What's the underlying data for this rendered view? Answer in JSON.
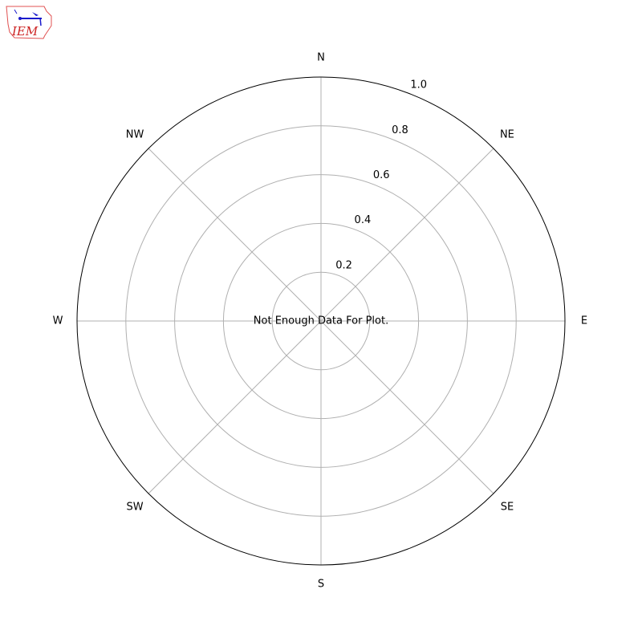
{
  "logo": {
    "text": "IEM",
    "colors": {
      "outline": "#e05050",
      "symbol": "#1a1acc",
      "text": "#cc2222"
    }
  },
  "chart_data": {
    "type": "polar",
    "title": "",
    "direction_labels": [
      "N",
      "NE",
      "E",
      "SE",
      "S",
      "SW",
      "W",
      "NW"
    ],
    "radial_ticks": [
      0.2,
      0.4,
      0.6,
      0.8,
      1.0
    ],
    "radial_tick_labels": [
      "0.2",
      "0.4",
      "0.6",
      "0.8",
      "1.0"
    ],
    "rlim": [
      0,
      1.0
    ],
    "grid": true,
    "series": [],
    "annotation": "Not Enough Data For Plot.",
    "colors": {
      "grid": "#b0b0b0",
      "outline": "#000000"
    }
  }
}
